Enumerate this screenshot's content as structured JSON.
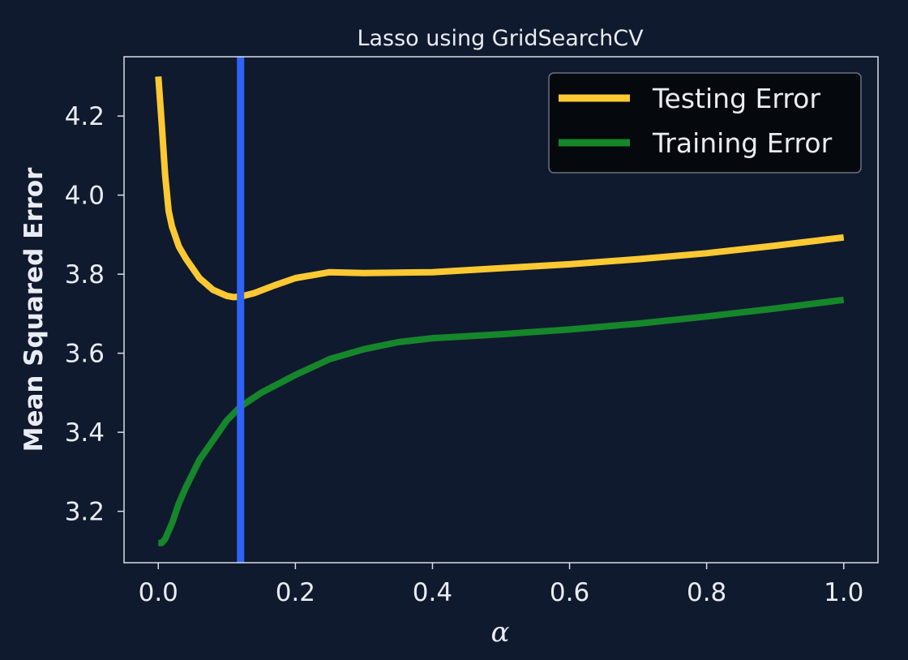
{
  "chart_data": {
    "type": "line",
    "title": "Lasso using GridSearchCV",
    "xlabel": "α",
    "ylabel": "Mean Squared Error",
    "xlim": [
      -0.05,
      1.05
    ],
    "ylim": [
      3.07,
      4.35
    ],
    "xticks": [
      {
        "value": 0.0,
        "label": "0.0"
      },
      {
        "value": 0.2,
        "label": "0.2"
      },
      {
        "value": 0.4,
        "label": "0.4"
      },
      {
        "value": 0.6,
        "label": "0.6"
      },
      {
        "value": 0.8,
        "label": "0.8"
      },
      {
        "value": 1.0,
        "label": "1.0"
      }
    ],
    "yticks": [
      {
        "value": 3.2,
        "label": "3.2"
      },
      {
        "value": 3.4,
        "label": "3.4"
      },
      {
        "value": 3.6,
        "label": "3.6"
      },
      {
        "value": 3.8,
        "label": "3.8"
      },
      {
        "value": 4.0,
        "label": "4.0"
      },
      {
        "value": 4.2,
        "label": "4.2"
      }
    ],
    "grid": false,
    "legend_position": "top-right",
    "series": [
      {
        "name": "Testing Error",
        "color": "#fcc933",
        "x": [
          0.0,
          0.005,
          0.01,
          0.015,
          0.02,
          0.03,
          0.04,
          0.06,
          0.08,
          0.1,
          0.11,
          0.12,
          0.14,
          0.17,
          0.2,
          0.25,
          0.3,
          0.4,
          0.5,
          0.6,
          0.7,
          0.8,
          0.9,
          1.0
        ],
        "y": [
          4.3,
          4.18,
          4.05,
          3.96,
          3.92,
          3.87,
          3.84,
          3.79,
          3.76,
          3.745,
          3.742,
          3.743,
          3.752,
          3.772,
          3.79,
          3.805,
          3.803,
          3.805,
          3.815,
          3.825,
          3.838,
          3.853,
          3.872,
          3.893
        ]
      },
      {
        "name": "Training Error",
        "color": "#16862a",
        "x": [
          0.0,
          0.005,
          0.01,
          0.015,
          0.02,
          0.03,
          0.04,
          0.06,
          0.08,
          0.1,
          0.12,
          0.15,
          0.2,
          0.25,
          0.3,
          0.35,
          0.4,
          0.5,
          0.6,
          0.7,
          0.8,
          0.9,
          1.0
        ],
        "y": [
          3.12,
          3.12,
          3.13,
          3.15,
          3.17,
          3.22,
          3.26,
          3.33,
          3.38,
          3.43,
          3.465,
          3.5,
          3.545,
          3.585,
          3.61,
          3.628,
          3.638,
          3.648,
          3.66,
          3.675,
          3.693,
          3.713,
          3.735
        ]
      }
    ],
    "vline": {
      "x": 0.12,
      "color": "#2f63f7"
    }
  }
}
